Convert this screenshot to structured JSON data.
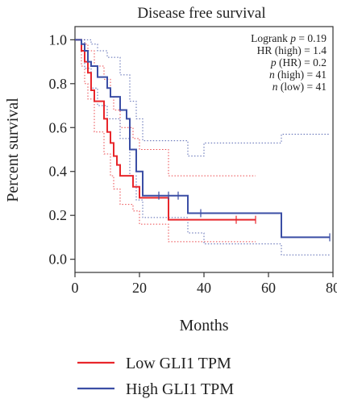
{
  "chart_data": {
    "type": "line",
    "title": "Disease free survival",
    "xlabel": "Months",
    "ylabel": "Percent survival",
    "xlim": [
      0,
      80
    ],
    "ylim": [
      -0.06,
      1.06
    ],
    "x_ticks": [
      0,
      20,
      40,
      60,
      80
    ],
    "y_ticks": [
      0.0,
      0.2,
      0.4,
      0.6,
      0.8,
      1.0
    ],
    "x_tick_labels": [
      "0",
      "20",
      "40",
      "60",
      "80"
    ],
    "y_tick_labels": [
      "0.0",
      "0.2",
      "0.4",
      "0.6",
      "0.8",
      "1.0"
    ],
    "grid": false,
    "legend_position": "bottom",
    "stats": {
      "logrank": {
        "prefix": "Logrank ",
        "var": "p",
        "suffix": " = 0.19"
      },
      "hr": {
        "prefix": "",
        "var": "",
        "suffix": "HR (high) = 1.4"
      },
      "phr": {
        "prefix": "",
        "var": "p",
        "suffix": " (HR) = 0.2"
      },
      "n_high": {
        "prefix": "",
        "var": "n",
        "suffix": " (high) = 41"
      },
      "n_low": {
        "prefix": "",
        "var": "n",
        "suffix": " (low) = 41"
      }
    },
    "series": [
      {
        "name": "Low GLI1 TPM",
        "color": "#e8262b",
        "steps": [
          [
            0,
            1.0
          ],
          [
            2,
            0.95
          ],
          [
            3,
            0.9
          ],
          [
            4,
            0.85
          ],
          [
            5,
            0.77
          ],
          [
            6,
            0.72
          ],
          [
            9,
            0.64
          ],
          [
            10,
            0.58
          ],
          [
            11,
            0.53
          ],
          [
            12,
            0.47
          ],
          [
            13,
            0.43
          ],
          [
            14,
            0.38
          ],
          [
            18,
            0.33
          ],
          [
            20,
            0.28
          ],
          [
            29,
            0.18
          ],
          [
            56,
            0.18
          ]
        ],
        "censors": [
          [
            50,
            0.18
          ],
          [
            56,
            0.18
          ]
        ],
        "ci_upper": [
          [
            0,
            1.0
          ],
          [
            2,
            1.0
          ],
          [
            3,
            0.98
          ],
          [
            4,
            0.95
          ],
          [
            6,
            0.88
          ],
          [
            9,
            0.82
          ],
          [
            11,
            0.74
          ],
          [
            12,
            0.68
          ],
          [
            14,
            0.6
          ],
          [
            18,
            0.55
          ],
          [
            20,
            0.5
          ],
          [
            29,
            0.38
          ],
          [
            56,
            0.38
          ]
        ],
        "ci_lower": [
          [
            0,
            1.0
          ],
          [
            2,
            0.88
          ],
          [
            3,
            0.8
          ],
          [
            4,
            0.73
          ],
          [
            6,
            0.58
          ],
          [
            9,
            0.48
          ],
          [
            11,
            0.38
          ],
          [
            12,
            0.32
          ],
          [
            14,
            0.25
          ],
          [
            18,
            0.22
          ],
          [
            20,
            0.16
          ],
          [
            29,
            0.08
          ],
          [
            56,
            0.08
          ]
        ]
      },
      {
        "name": "High GLI1 TPM",
        "color": "#3b4ea5",
        "steps": [
          [
            0,
            1.0
          ],
          [
            2,
            0.98
          ],
          [
            3,
            0.95
          ],
          [
            4,
            0.9
          ],
          [
            5,
            0.88
          ],
          [
            7,
            0.83
          ],
          [
            10,
            0.78
          ],
          [
            11,
            0.74
          ],
          [
            14,
            0.68
          ],
          [
            16,
            0.64
          ],
          [
            17,
            0.5
          ],
          [
            19,
            0.4
          ],
          [
            21,
            0.29
          ],
          [
            33,
            0.29
          ],
          [
            35,
            0.21
          ],
          [
            64,
            0.21
          ],
          [
            64,
            0.1
          ],
          [
            79,
            0.1
          ]
        ],
        "censors": [
          [
            26,
            0.29
          ],
          [
            29,
            0.29
          ],
          [
            32,
            0.29
          ],
          [
            39,
            0.21
          ],
          [
            79,
            0.1
          ]
        ],
        "ci_upper": [
          [
            0,
            1.0
          ],
          [
            3,
            1.0
          ],
          [
            5,
            0.98
          ],
          [
            7,
            0.95
          ],
          [
            10,
            0.92
          ],
          [
            14,
            0.84
          ],
          [
            17,
            0.72
          ],
          [
            19,
            0.64
          ],
          [
            21,
            0.54
          ],
          [
            35,
            0.47
          ],
          [
            40,
            0.53
          ],
          [
            64,
            0.53
          ],
          [
            64,
            0.57
          ],
          [
            79,
            0.57
          ]
        ],
        "ci_lower": [
          [
            0,
            1.0
          ],
          [
            3,
            0.87
          ],
          [
            5,
            0.78
          ],
          [
            7,
            0.7
          ],
          [
            10,
            0.64
          ],
          [
            14,
            0.55
          ],
          [
            17,
            0.38
          ],
          [
            19,
            0.27
          ],
          [
            21,
            0.19
          ],
          [
            35,
            0.12
          ],
          [
            40,
            0.07
          ],
          [
            64,
            0.07
          ],
          [
            64,
            0.02
          ],
          [
            79,
            0.02
          ]
        ]
      }
    ]
  }
}
